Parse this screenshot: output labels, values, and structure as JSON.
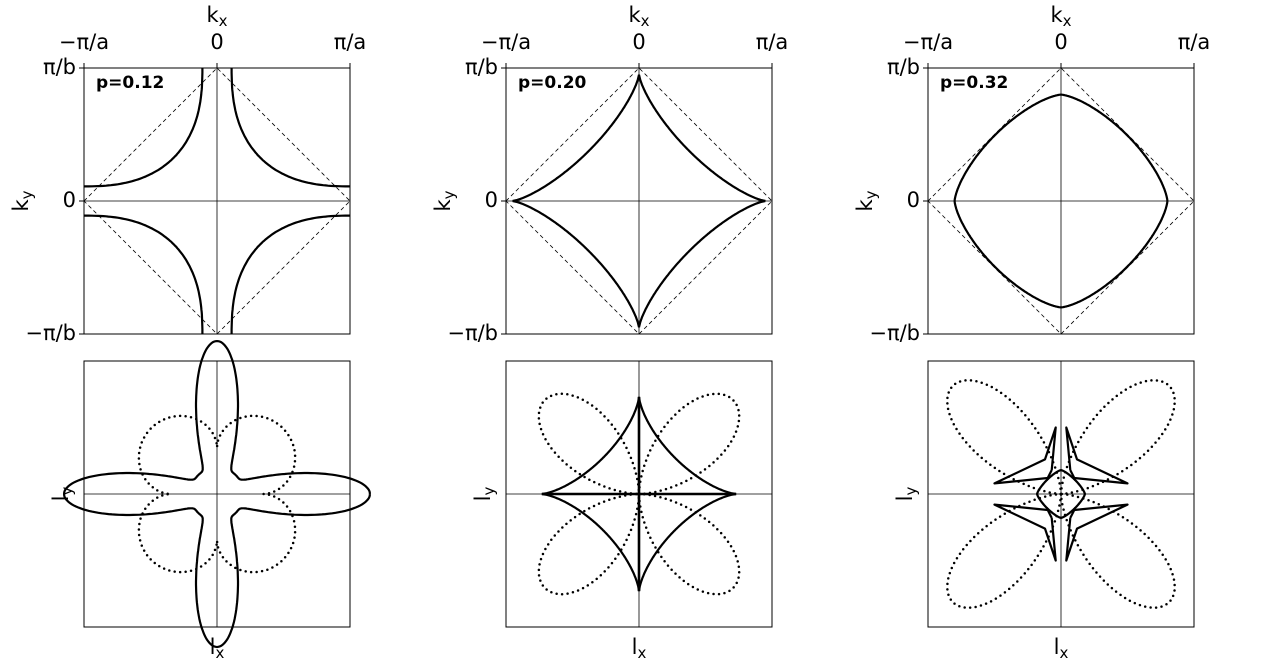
{
  "panels": [
    {
      "label": "p=0.12",
      "top": {
        "x_title": {
          "base": "k",
          "sub": "x"
        },
        "y_title": {
          "base": "k",
          "sub": "y"
        },
        "xticks": [
          "−π/a",
          "0",
          "π/a"
        ],
        "yticks": [
          "π/b",
          "0",
          "−π/b"
        ]
      },
      "bottom": {
        "x_title": {
          "base": "l",
          "sub": "x"
        },
        "y_title": {
          "base": "l",
          "sub": "y"
        }
      }
    },
    {
      "label": "p=0.20",
      "top": {
        "x_title": {
          "base": "k",
          "sub": "x"
        },
        "y_title": {
          "base": "k",
          "sub": "y"
        },
        "xticks": [
          "−π/a",
          "0",
          "π/a"
        ],
        "yticks": [
          "π/b",
          "0",
          "−π/b"
        ]
      },
      "bottom": {
        "x_title": {
          "base": "l",
          "sub": "x"
        },
        "y_title": {
          "base": "l",
          "sub": "y"
        }
      }
    },
    {
      "label": "p=0.32",
      "top": {
        "x_title": {
          "base": "k",
          "sub": "x"
        },
        "y_title": {
          "base": "k",
          "sub": "y"
        },
        "xticks": [
          "−π/a",
          "0",
          "π/a"
        ],
        "yticks": [
          "π/b",
          "0",
          "−π/b"
        ]
      },
      "bottom": {
        "x_title": {
          "base": "l",
          "sub": "x"
        },
        "y_title": {
          "base": "l",
          "sub": "y"
        }
      }
    }
  ]
}
